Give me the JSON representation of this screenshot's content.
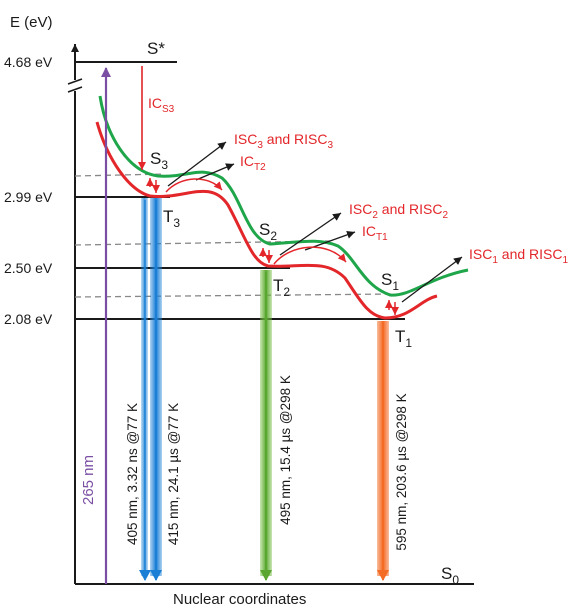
{
  "axes": {
    "y_label": "E (eV)",
    "x_label": "Nuclear coordinates"
  },
  "levels": {
    "s_star": "4.68 eV",
    "t3": "2.99 eV",
    "t2": "2.50 eV",
    "t1": "2.08 eV"
  },
  "states": {
    "s_star": "S*",
    "s3": {
      "base": "S",
      "sub": "3"
    },
    "t3": {
      "base": "T",
      "sub": "3"
    },
    "s2": {
      "base": "S",
      "sub": "2"
    },
    "t2": {
      "base": "T",
      "sub": "2"
    },
    "s1": {
      "base": "S",
      "sub": "1"
    },
    "t1": {
      "base": "T",
      "sub": "1"
    },
    "s0": {
      "base": "S",
      "sub": "0"
    }
  },
  "annotations": {
    "ic_s3": {
      "base": "IC",
      "sub": "S3"
    },
    "ic_t2": {
      "base": "IC",
      "sub": "T2"
    },
    "ic_t1": {
      "base": "IC",
      "sub": "T1"
    },
    "isc3": {
      "a": "ISC",
      "a_sub": "3",
      "mid": " and RISC",
      "b_sub": "3"
    },
    "isc2": {
      "a": "ISC",
      "a_sub": "2",
      "mid": " and RISC",
      "b_sub": "2"
    },
    "isc1": {
      "a": "ISC",
      "a_sub": "1",
      "mid": " and RISC",
      "b_sub": "1"
    }
  },
  "transitions": {
    "excitation": "265 nm",
    "em_405": "405 nm, 3.32 ns @77 K",
    "em_415": "415 nm, 24.1 µs @77 K",
    "em_495": "495 nm, 15.4 µs @298 K",
    "em_595": "595 nm, 203.6 µs @298 K"
  },
  "colors": {
    "singlet_curve": "#1fa64a",
    "triplet_curve": "#e3262a",
    "excitation_arrow": "#7a4fa3",
    "arrow_405": "#1b7fd6",
    "arrow_415": "#1b7fd6",
    "arrow_495": "#76c043",
    "arrow_595": "#f46b25",
    "dashed_line": "#888888"
  }
}
